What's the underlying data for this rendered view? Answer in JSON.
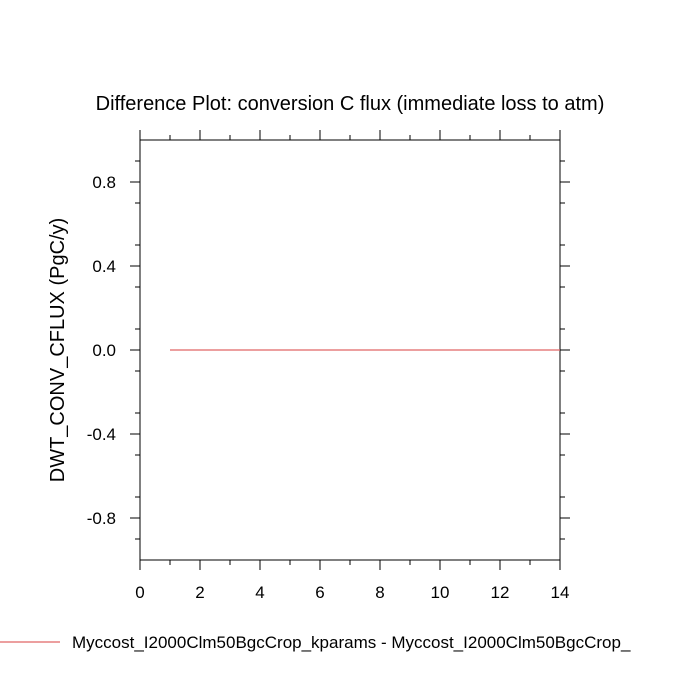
{
  "chart_data": {
    "type": "line",
    "title": "Difference Plot: conversion C flux (immediate loss to atm)",
    "xlabel": "",
    "ylabel": "DWT_CONV_CFLUX  (PgC/y)",
    "xlim": [
      0,
      14
    ],
    "ylim": [
      -1,
      1
    ],
    "x_ticks": [
      0,
      2,
      4,
      6,
      8,
      10,
      12,
      14
    ],
    "y_ticks": [
      -0.8,
      -0.4,
      0.0,
      0.4,
      0.8
    ],
    "x_tick_labels": [
      "0",
      "2",
      "4",
      "6",
      "8",
      "10",
      "12",
      "14"
    ],
    "y_tick_labels": [
      "-0.8",
      "-0.4",
      "0.0",
      "0.4",
      "0.8"
    ],
    "grid": false,
    "legend_position": "bottom",
    "series": [
      {
        "name": "Myccost_I2000Clm50BgcCrop_kparams - Myccost_I2000Clm50BgcCrop_",
        "color": "#e06666",
        "x": [
          1,
          2,
          3,
          4,
          5,
          6,
          7,
          8,
          9,
          10,
          11,
          12,
          13,
          14
        ],
        "y": [
          0,
          0,
          0,
          0,
          0,
          0,
          0,
          0,
          0,
          0,
          0,
          0,
          0,
          0
        ]
      }
    ]
  }
}
